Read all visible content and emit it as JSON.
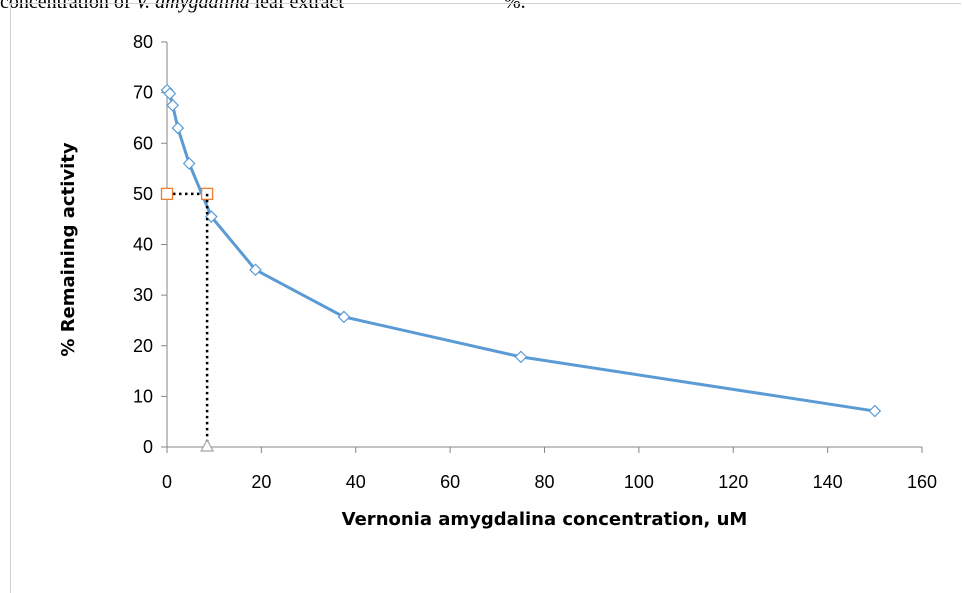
{
  "caption": {
    "part1": "concentration of ",
    "italic": "V. amygdalina",
    "part2": " leaf extract",
    "part3": "%."
  },
  "chart_data": {
    "type": "line",
    "title": "",
    "xlabel": "Vernonia amygdalina concentration, uM",
    "ylabel": "% Remaining activity",
    "xlim": [
      0,
      160
    ],
    "ylim": [
      0,
      80
    ],
    "xticks": [
      0,
      20,
      40,
      60,
      80,
      100,
      120,
      140,
      160
    ],
    "yticks": [
      0,
      10,
      20,
      30,
      40,
      50,
      60,
      70,
      80
    ],
    "grid": false,
    "legend": "none",
    "series": [
      {
        "color": "#5b9bd5",
        "marker": "diamond",
        "points": [
          [
            0,
            70.5
          ],
          [
            0.6,
            69.8
          ],
          [
            1.2,
            67.5
          ],
          [
            2.3,
            63.0
          ],
          [
            4.7,
            56.0
          ],
          [
            9.4,
            45.5
          ],
          [
            18.75,
            35.0
          ],
          [
            37.5,
            25.7
          ],
          [
            75,
            17.8
          ],
          [
            150,
            7.1
          ]
        ]
      },
      {
        "color": "#ed7d31",
        "marker": "square",
        "style": "dotted",
        "points": [
          [
            0,
            50
          ],
          [
            8.5,
            50
          ]
        ]
      },
      {
        "color": "#a5a5a5",
        "marker": "triangle",
        "style": "dotted",
        "points": [
          [
            8.5,
            50
          ],
          [
            8.5,
            0
          ]
        ]
      }
    ]
  }
}
